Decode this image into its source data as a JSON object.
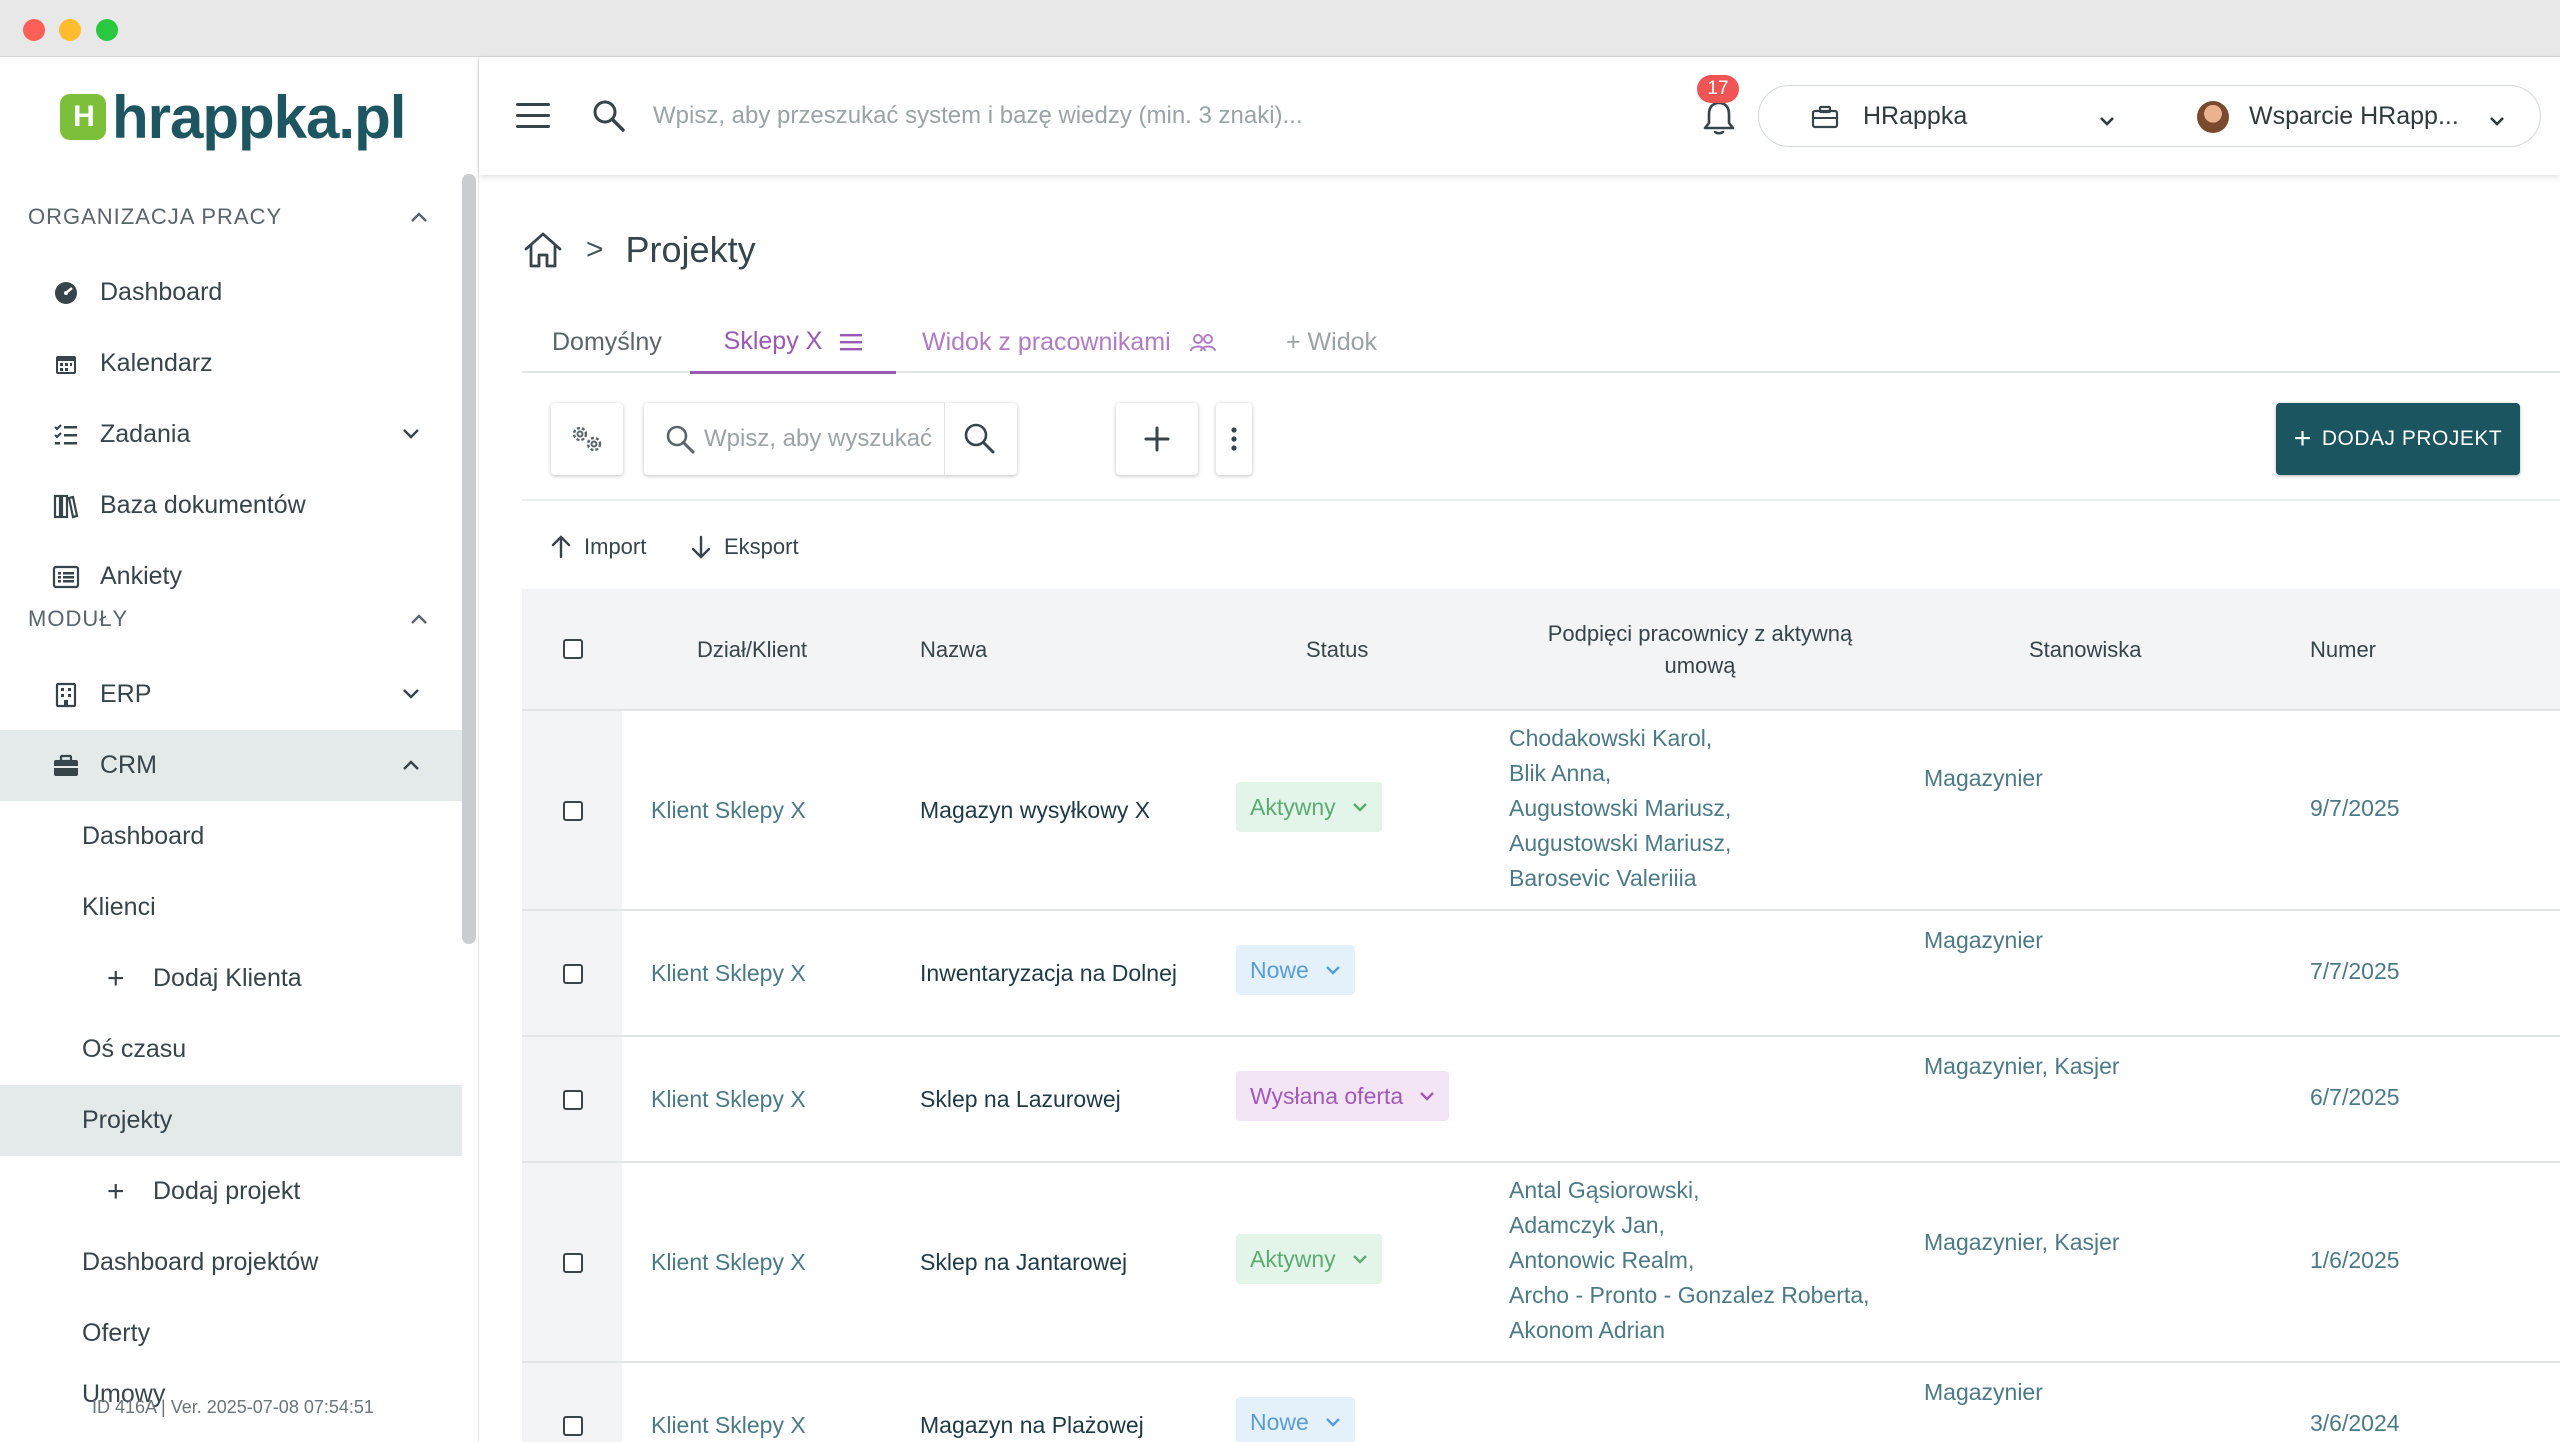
{
  "window": {
    "controls": [
      "close",
      "minimize",
      "maximize"
    ]
  },
  "logo": {
    "mark": "H",
    "text": "hrappka.pl"
  },
  "sidebar": {
    "sections": [
      {
        "title": "ORGANIZACJA PRACY"
      },
      {
        "title": "MODUŁY"
      }
    ],
    "items": {
      "dashboard": "Dashboard",
      "kalendarz": "Kalendarz",
      "zadania": "Zadania",
      "baza": "Baza dokumentów",
      "ankiety": "Ankiety",
      "erp": "ERP",
      "crm": "CRM",
      "crm_dashboard": "Dashboard",
      "klienci": "Klienci",
      "dodaj_klienta": "Dodaj Klienta",
      "os_czasu": "Oś czasu",
      "projekty": "Projekty",
      "dodaj_projekt": "Dodaj projekt",
      "dashboard_projektow": "Dashboard projektów",
      "oferty": "Oferty",
      "umowy": "Umowy"
    },
    "version": "ID 416A | Ver. 2025-07-08 07:54:51"
  },
  "topbar": {
    "search_placeholder": "Wpisz, aby przeszukać system i bazę wiedzy (min. 3 znaki)...",
    "notifications": "17",
    "organization": "HRappka",
    "user": "Wsparcie HRapp..."
  },
  "breadcrumb": {
    "separator": ">",
    "title": "Projekty"
  },
  "tabs": {
    "default": "Domyślny",
    "active": "Sklepy X",
    "with_workers": "Widok z pracownikami",
    "add": "+ Widok"
  },
  "toolbar": {
    "search_placeholder": "Wpisz, aby wyszukać",
    "add_project": "DODAJ PROJEKT",
    "import": "Import",
    "export": "Eksport"
  },
  "table": {
    "headers": {
      "client": "Dział/Klient",
      "name": "Nazwa",
      "status": "Status",
      "workers": "Podpięci pracownicy z aktywną umową",
      "positions": "Stanowiska",
      "number": "Numer"
    },
    "rows": [
      {
        "client": "Klient Sklepy X",
        "name": "Magazyn wysyłkowy X",
        "status": "Aktywny",
        "workers": [
          "Chodakowski Karol,",
          "Blik Anna,",
          "Augustowski Mariusz,",
          "Augustowski Mariusz,",
          "Barosevic Valeriiia"
        ],
        "positions": "Magazynier",
        "number": "9/7/2025"
      },
      {
        "client": "Klient Sklepy X",
        "name": "Inwentaryzacja na Dolnej",
        "status": "Nowe",
        "workers": [],
        "positions": "Magazynier",
        "number": "7/7/2025"
      },
      {
        "client": "Klient Sklepy X",
        "name": "Sklep na Lazurowej",
        "status": "Wysłana oferta",
        "workers": [],
        "positions": "Magazynier, Kasjer",
        "number": "6/7/2025"
      },
      {
        "client": "Klient Sklepy X",
        "name": "Sklep na Jantarowej",
        "status": "Aktywny",
        "workers": [
          "Antal Gąsiorowski,",
          "Adamczyk Jan,",
          "Antonowic Realm,",
          "Archo - Pronto - Gonzalez Roberta,",
          "Akonom Adrian"
        ],
        "positions": "Magazynier, Kasjer",
        "number": "1/6/2025"
      },
      {
        "client": "Klient Sklepy X",
        "name": "Magazyn na Plażowej",
        "status": "Nowe",
        "workers": [],
        "positions": "Magazynier",
        "number": "3/6/2024"
      }
    ]
  },
  "colors": {
    "brand": "#1a5560",
    "accent_tab": "#9b59b6",
    "logo_green": "#7dbf3b",
    "badge": "#f05454"
  }
}
